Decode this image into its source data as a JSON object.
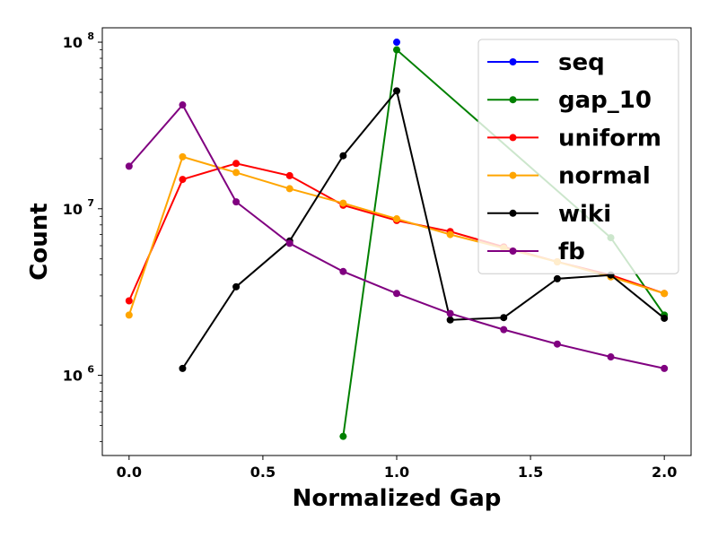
{
  "chart_data": {
    "type": "line",
    "xlabel": "Normalized Gap",
    "ylabel": "Count",
    "xlim": [
      -0.1,
      2.1
    ],
    "ylim": [
      330000,
      122000000
    ],
    "yscale": "log",
    "xticks": [
      {
        "value": 0.0,
        "label": "0.0"
      },
      {
        "value": 0.5,
        "label": "0.5"
      },
      {
        "value": 1.0,
        "label": "1.0"
      },
      {
        "value": 1.5,
        "label": "1.5"
      },
      {
        "value": 2.0,
        "label": "2.0"
      }
    ],
    "yticks": [
      {
        "value": 1000000,
        "base": "10",
        "exp": "6"
      },
      {
        "value": 10000000,
        "base": "10",
        "exp": "7"
      },
      {
        "value": 100000000,
        "base": "10",
        "exp": "8"
      }
    ],
    "legend_position": "upper-right",
    "grid": false,
    "series": [
      {
        "name": "seq",
        "color": "#0000ff",
        "x": [
          1.0
        ],
        "y": [
          100000000
        ]
      },
      {
        "name": "gap_10",
        "color": "#008000",
        "x": [
          0.8,
          1.0,
          1.8,
          2.0
        ],
        "y": [
          430000,
          90000000,
          6700000,
          2300000
        ]
      },
      {
        "name": "uniform",
        "color": "#ff0000",
        "x": [
          0.0,
          0.2,
          0.4,
          0.6,
          0.8,
          1.0,
          1.2,
          1.4,
          1.6,
          1.8,
          2.0
        ],
        "y": [
          2800000,
          15000000,
          18700000,
          15800000,
          10500000,
          8500000,
          7300000,
          5900000,
          4800000,
          4000000,
          3100000
        ]
      },
      {
        "name": "normal",
        "color": "#ffa500",
        "x": [
          0.0,
          0.2,
          0.4,
          0.6,
          0.8,
          1.0,
          1.2,
          1.4,
          1.6,
          1.8,
          2.0
        ],
        "y": [
          2300000,
          20500000,
          16500000,
          13200000,
          10800000,
          8700000,
          7000000,
          5800000,
          4800000,
          3900000,
          3100000
        ]
      },
      {
        "name": "wiki",
        "color": "#000000",
        "x": [
          0.2,
          0.4,
          0.6,
          0.8,
          1.0,
          1.2,
          1.4,
          1.6,
          1.8,
          2.0
        ],
        "y": [
          1100000,
          3400000,
          6400000,
          20800000,
          51000000,
          2150000,
          2220000,
          3800000,
          4000000,
          2200000
        ]
      },
      {
        "name": "fb",
        "color": "#800080",
        "x": [
          0.0,
          0.2,
          0.4,
          0.6,
          0.8,
          1.0,
          1.2,
          1.4,
          1.6,
          1.8,
          2.0
        ],
        "y": [
          18000000,
          42000000,
          11000000,
          6200000,
          4200000,
          3100000,
          2350000,
          1880000,
          1540000,
          1290000,
          1100000
        ]
      }
    ]
  }
}
